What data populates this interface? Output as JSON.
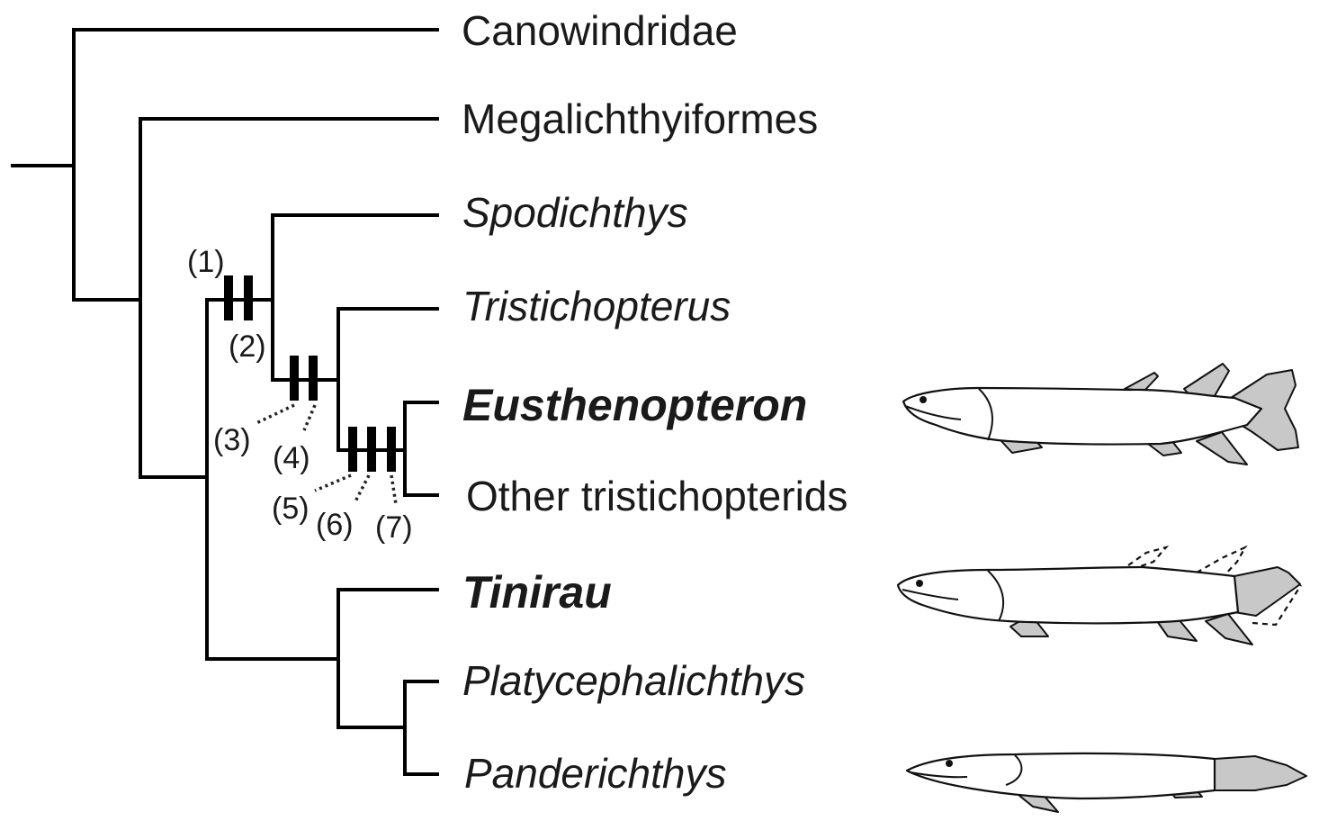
{
  "taxa": {
    "canowindridae": "Canowindridae",
    "megalichthyiformes": "Megalichthyiformes",
    "spodichthys": "Spodichthys",
    "tristichopterus": "Tristichopterus",
    "eusthenopteron": "Eusthenopteron",
    "other_tristichopterids": "Other tristichopterids",
    "tinirau": "Tinirau",
    "platycephalichthys": "Platycephalichthys",
    "panderichthys": "Panderichthys"
  },
  "characters": [
    "(1)",
    "(2)",
    "(3)",
    "(4)",
    "(5)",
    "(6)",
    "(7)"
  ],
  "colors": {
    "line": "#000000",
    "fin_fill": "#c8c8c8",
    "text": "#1a1a1a"
  },
  "illustrations": [
    "eusthenopteron-fish",
    "tinirau-fish",
    "panderichthys-fish"
  ]
}
